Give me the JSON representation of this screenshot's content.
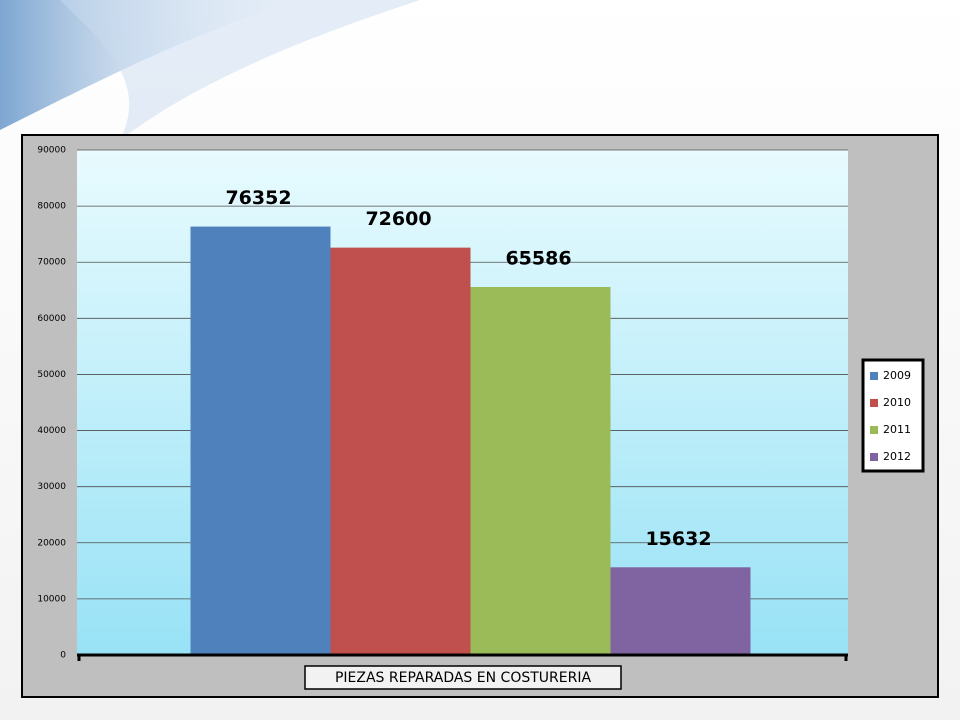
{
  "chart_data": {
    "type": "bar",
    "categories": [
      "PIEZAS REPARADAS EN COSTURERIA"
    ],
    "series": [
      {
        "name": "2009",
        "color": "#4f81bd",
        "values": [
          76352
        ]
      },
      {
        "name": "2010",
        "color": "#c0504d",
        "values": [
          72600
        ]
      },
      {
        "name": "2011",
        "color": "#9bbb59",
        "values": [
          65586
        ]
      },
      {
        "name": "2012",
        "color": "#8064a2",
        "values": [
          15632
        ]
      }
    ],
    "ylim": [
      0,
      90000
    ],
    "yticks": [
      0,
      10000,
      20000,
      30000,
      40000,
      50000,
      60000,
      70000,
      80000,
      90000
    ],
    "grid": true,
    "legend": "right"
  }
}
